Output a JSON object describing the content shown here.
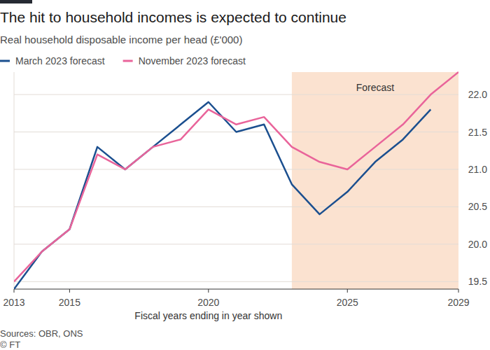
{
  "chart_data": {
    "type": "line",
    "title": "The hit to household incomes is expected to continue",
    "subtitle": "Real household disposable income per head (£'000)",
    "x_label": "Fiscal years ending in year shown",
    "source": "Sources: OBR, ONS",
    "credit": "© FT",
    "x": [
      2013,
      2014,
      2015,
      2016,
      2017,
      2018,
      2019,
      2020,
      2021,
      2022,
      2023,
      2024,
      2025,
      2026,
      2027,
      2028,
      2029
    ],
    "series": [
      {
        "name": "March 2023 forecast",
        "color": "#1b4f8f",
        "values": [
          19.4,
          19.9,
          20.2,
          21.3,
          21.0,
          21.3,
          21.6,
          21.9,
          21.5,
          21.6,
          20.8,
          20.4,
          20.7,
          21.1,
          21.4,
          21.8,
          null
        ]
      },
      {
        "name": "November 2023 forecast",
        "color": "#e9649a",
        "values": [
          19.5,
          19.9,
          20.2,
          21.2,
          21.0,
          21.3,
          21.4,
          21.8,
          21.6,
          21.7,
          21.3,
          21.1,
          21.0,
          21.3,
          21.6,
          22.0,
          22.3
        ]
      }
    ],
    "annotations": [
      {
        "text": "Forecast",
        "x_start": 2023,
        "x_end": 2029
      }
    ],
    "xlim": [
      2013,
      2029
    ],
    "xticks": [
      2013,
      2015,
      2020,
      2025,
      2029
    ],
    "ylim": [
      19.4,
      22.3
    ],
    "yticks": [
      19.5,
      {
        "value": 20,
        "label": "20.0"
      },
      20.5,
      {
        "value": 21,
        "label": "21.0"
      },
      21.5,
      {
        "value": 22,
        "label": "22.0"
      }
    ],
    "grid": true,
    "legend": "top-left"
  }
}
